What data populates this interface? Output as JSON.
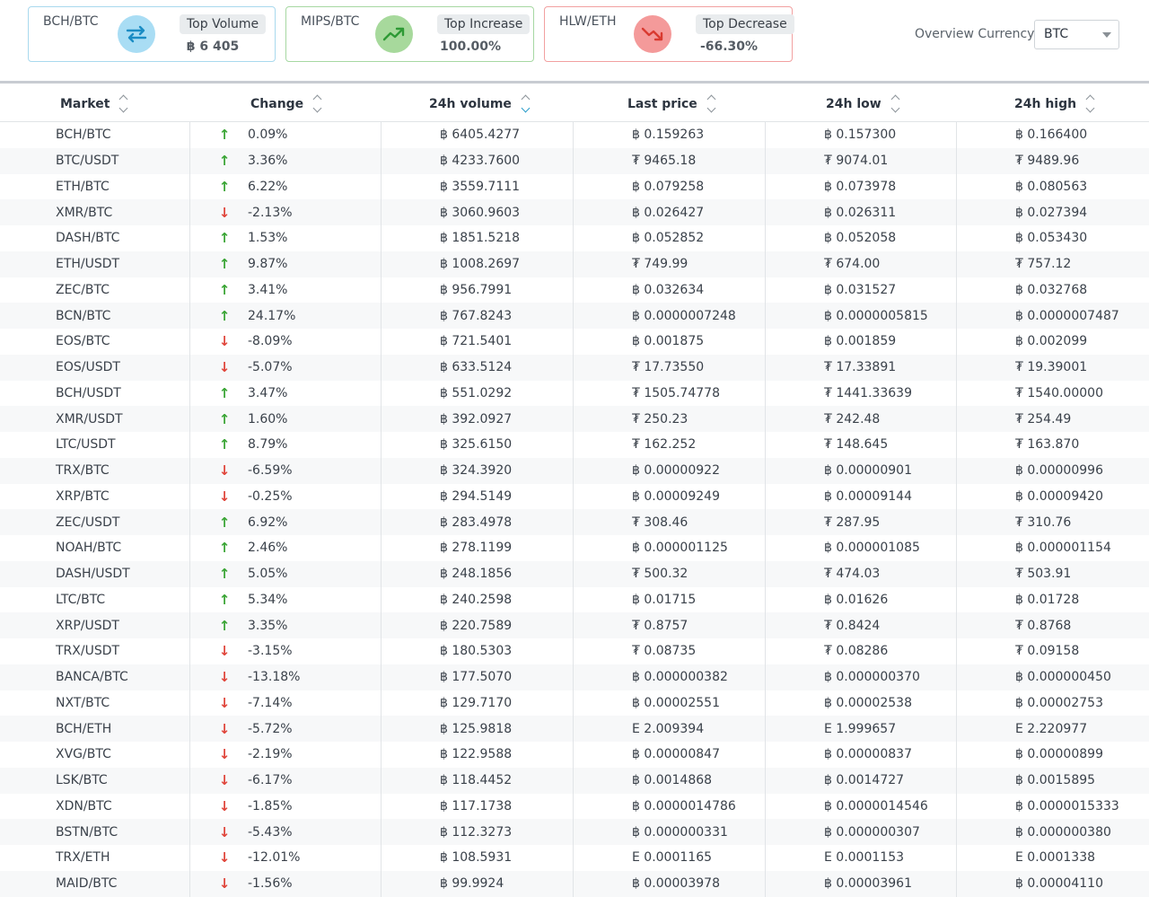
{
  "cards": {
    "volume": {
      "pair": "BCH/BTC",
      "badge": "Top Volume",
      "value": "฿ 6 405",
      "icon": "swap-arrows-icon",
      "color": "#a9ddf4"
    },
    "increase": {
      "pair": "MIPS/BTC",
      "badge": "Top Increase",
      "value": "100.00%",
      "icon": "trending-up-icon",
      "color": "#a7d99c"
    },
    "decrease": {
      "pair": "HLW/ETH",
      "badge": "Top Decrease",
      "value": "-66.30%",
      "icon": "trending-down-icon",
      "color": "#f49a9a"
    }
  },
  "overview": {
    "label": "Overview Currency",
    "selected": "BTC"
  },
  "table": {
    "headers": [
      "Market",
      "Change",
      "24h volume",
      "Last price",
      "24h low",
      "24h high"
    ],
    "rows": [
      [
        "BCH/BTC",
        "up",
        "0.09%",
        "฿ 6405.4277",
        "฿ 0.159263",
        "฿ 0.157300",
        "฿ 0.166400"
      ],
      [
        "BTC/USDT",
        "up",
        "3.36%",
        "฿ 4233.7600",
        "₮ 9465.18",
        "₮ 9074.01",
        "₮ 9489.96"
      ],
      [
        "ETH/BTC",
        "up",
        "6.22%",
        "฿ 3559.7111",
        "฿ 0.079258",
        "฿ 0.073978",
        "฿ 0.080563"
      ],
      [
        "XMR/BTC",
        "down",
        "-2.13%",
        "฿ 3060.9603",
        "฿ 0.026427",
        "฿ 0.026311",
        "฿ 0.027394"
      ],
      [
        "DASH/BTC",
        "up",
        "1.53%",
        "฿ 1851.5218",
        "฿ 0.052852",
        "฿ 0.052058",
        "฿ 0.053430"
      ],
      [
        "ETH/USDT",
        "up",
        "9.87%",
        "฿ 1008.2697",
        "₮ 749.99",
        "₮ 674.00",
        "₮ 757.12"
      ],
      [
        "ZEC/BTC",
        "up",
        "3.41%",
        "฿ 956.7991",
        "฿ 0.032634",
        "฿ 0.031527",
        "฿ 0.032768"
      ],
      [
        "BCN/BTC",
        "up",
        "24.17%",
        "฿ 767.8243",
        "฿ 0.0000007248",
        "฿ 0.0000005815",
        "฿ 0.0000007487"
      ],
      [
        "EOS/BTC",
        "down",
        "-8.09%",
        "฿ 721.5401",
        "฿ 0.001875",
        "฿ 0.001859",
        "฿ 0.002099"
      ],
      [
        "EOS/USDT",
        "down",
        "-5.07%",
        "฿ 633.5124",
        "₮ 17.73550",
        "₮ 17.33891",
        "₮ 19.39001"
      ],
      [
        "BCH/USDT",
        "up",
        "3.47%",
        "฿ 551.0292",
        "₮ 1505.74778",
        "₮ 1441.33639",
        "₮ 1540.00000"
      ],
      [
        "XMR/USDT",
        "up",
        "1.60%",
        "฿ 392.0927",
        "₮ 250.23",
        "₮ 242.48",
        "₮ 254.49"
      ],
      [
        "LTC/USDT",
        "up",
        "8.79%",
        "฿ 325.6150",
        "₮ 162.252",
        "₮ 148.645",
        "₮ 163.870"
      ],
      [
        "TRX/BTC",
        "down",
        "-6.59%",
        "฿ 324.3920",
        "฿ 0.00000922",
        "฿ 0.00000901",
        "฿ 0.00000996"
      ],
      [
        "XRP/BTC",
        "down",
        "-0.25%",
        "฿ 294.5149",
        "฿ 0.00009249",
        "฿ 0.00009144",
        "฿ 0.00009420"
      ],
      [
        "ZEC/USDT",
        "up",
        "6.92%",
        "฿ 283.4978",
        "₮ 308.46",
        "₮ 287.95",
        "₮ 310.76"
      ],
      [
        "NOAH/BTC",
        "up",
        "2.46%",
        "฿ 278.1199",
        "฿ 0.000001125",
        "฿ 0.000001085",
        "฿ 0.000001154"
      ],
      [
        "DASH/USDT",
        "up",
        "5.05%",
        "฿ 248.1856",
        "₮ 500.32",
        "₮ 474.03",
        "₮ 503.91"
      ],
      [
        "LTC/BTC",
        "up",
        "5.34%",
        "฿ 240.2598",
        "฿ 0.01715",
        "฿ 0.01626",
        "฿ 0.01728"
      ],
      [
        "XRP/USDT",
        "up",
        "3.35%",
        "฿ 220.7589",
        "₮ 0.8757",
        "₮ 0.8424",
        "₮ 0.8768"
      ],
      [
        "TRX/USDT",
        "down",
        "-3.15%",
        "฿ 180.5303",
        "₮ 0.08735",
        "₮ 0.08286",
        "₮ 0.09158"
      ],
      [
        "BANCA/BTC",
        "down",
        "-13.18%",
        "฿ 177.5070",
        "฿ 0.000000382",
        "฿ 0.000000370",
        "฿ 0.000000450"
      ],
      [
        "NXT/BTC",
        "down",
        "-7.14%",
        "฿ 129.7170",
        "฿ 0.00002551",
        "฿ 0.00002538",
        "฿ 0.00002753"
      ],
      [
        "BCH/ETH",
        "down",
        "-5.72%",
        "฿ 125.9818",
        "Ε 2.009394",
        "Ε 1.999657",
        "Ε 2.220977"
      ],
      [
        "XVG/BTC",
        "down",
        "-2.19%",
        "฿ 122.9588",
        "฿ 0.00000847",
        "฿ 0.00000837",
        "฿ 0.00000899"
      ],
      [
        "LSK/BTC",
        "down",
        "-6.17%",
        "฿ 118.4452",
        "฿ 0.0014868",
        "฿ 0.0014727",
        "฿ 0.0015895"
      ],
      [
        "XDN/BTC",
        "down",
        "-1.85%",
        "฿ 117.1738",
        "฿ 0.0000014786",
        "฿ 0.0000014546",
        "฿ 0.0000015333"
      ],
      [
        "BSTN/BTC",
        "down",
        "-5.43%",
        "฿ 112.3273",
        "฿ 0.000000331",
        "฿ 0.000000307",
        "฿ 0.000000380"
      ],
      [
        "TRX/ETH",
        "down",
        "-12.01%",
        "฿ 108.5931",
        "Ε 0.0001165",
        "Ε 0.0001153",
        "Ε 0.0001338"
      ],
      [
        "MAID/BTC",
        "down",
        "-1.56%",
        "฿ 99.9924",
        "฿ 0.00003978",
        "฿ 0.00003961",
        "฿ 0.00004110"
      ]
    ]
  }
}
